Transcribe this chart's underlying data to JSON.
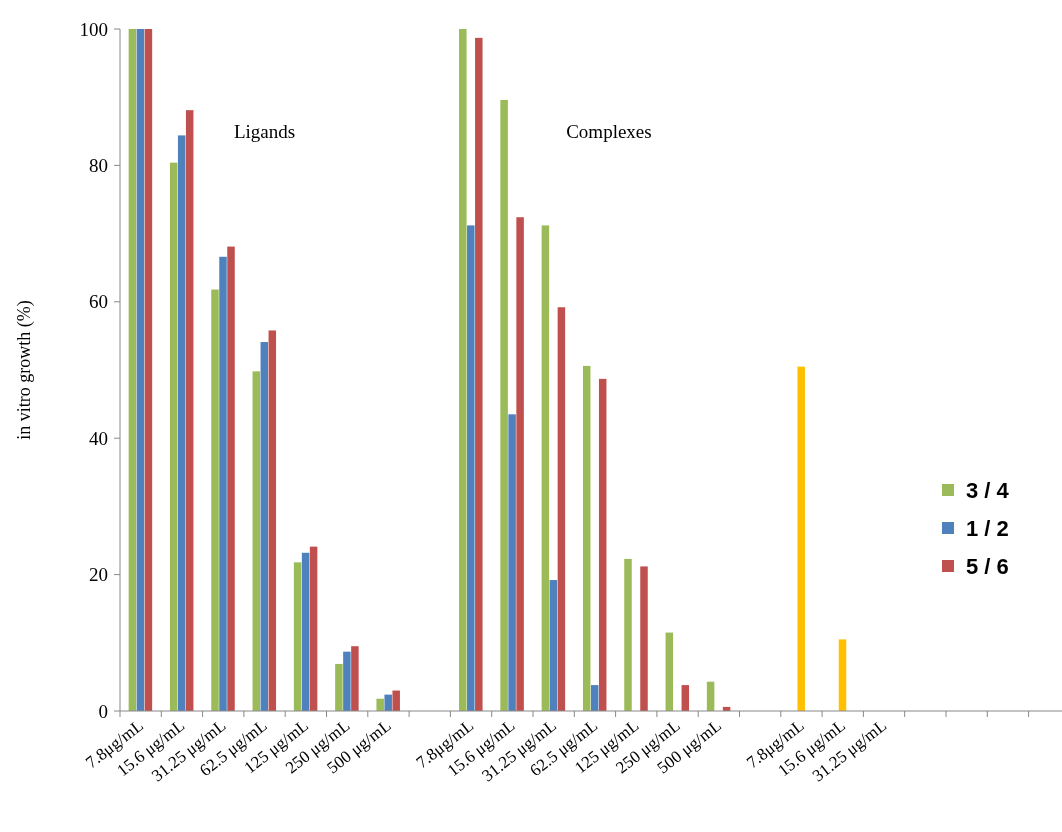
{
  "chart_data": {
    "type": "bar",
    "ylabel": "in vitro growth (%)",
    "categories": [
      "7.8μg/mL",
      "15.6 μg/mL",
      "31.25 μg/mL",
      "62.5 μg/mL",
      "125 μg/mL",
      "250 μg/mL",
      "500 μg/mL",
      null,
      "7.8μg/mL",
      "15.6 μg/mL",
      "31.25 μg/mL",
      "62.5 μg/mL",
      "125 μg/mL",
      "250 μg/mL",
      "500 μg/mL",
      null,
      "7.8μg/mL",
      "15.6 μg/mL",
      "31.25 μg/mL",
      null,
      null,
      null,
      null
    ],
    "series": [
      {
        "name": "3 / 4",
        "color": "#9bbb59",
        "values": [
          100,
          80.4,
          61.8,
          49.8,
          21.8,
          6.9,
          1.8,
          null,
          100,
          89.6,
          71.2,
          50.6,
          22.3,
          11.5,
          4.3,
          null,
          null,
          null,
          null,
          null,
          null,
          null,
          null
        ]
      },
      {
        "name": "1 / 2",
        "color": "#4f81bd",
        "values": [
          100,
          84.4,
          66.6,
          54.1,
          23.2,
          8.7,
          2.4,
          null,
          71.2,
          43.5,
          19.2,
          3.8,
          0,
          0,
          0,
          null,
          null,
          null,
          null,
          null,
          null,
          null,
          null
        ]
      },
      {
        "name": "5 / 6",
        "color": "#c0504d",
        "values": [
          100,
          88.1,
          68.1,
          55.8,
          24.1,
          9.5,
          3.0,
          null,
          98.7,
          72.4,
          59.2,
          48.7,
          21.2,
          3.8,
          0.6,
          null,
          null,
          null,
          null,
          null,
          null,
          null,
          null
        ]
      },
      {
        "color": "#ffc000",
        "values": [
          null,
          null,
          null,
          null,
          null,
          null,
          null,
          null,
          null,
          null,
          null,
          null,
          null,
          null,
          null,
          null,
          50.5,
          10.5,
          0,
          null,
          null,
          null,
          null
        ]
      }
    ],
    "ylim": [
      0,
      100
    ],
    "yticks": [
      0,
      20,
      40,
      60,
      80,
      100
    ],
    "grid": false,
    "legend": "right",
    "annotations": [
      "Ligands",
      "Complexes"
    ]
  }
}
